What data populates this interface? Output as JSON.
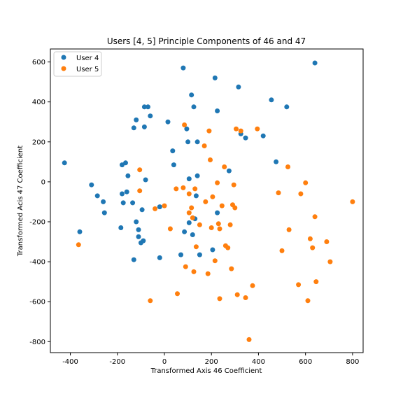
{
  "chart_data": {
    "type": "scatter",
    "title": "Users [4, 5] Principle Components of 46 and 47",
    "xlabel": "Transformed Axis 46 Coefficient",
    "ylabel": "Transformed Acis 47 Coefficient",
    "xlim": [
      -485,
      845
    ],
    "ylim": [
      -855,
      665
    ],
    "xticks": [
      -400,
      -200,
      0,
      200,
      400,
      600,
      800
    ],
    "yticks": [
      -800,
      -600,
      -400,
      -200,
      0,
      200,
      400,
      600
    ],
    "grid": false,
    "legend_position": "top-left",
    "series": [
      {
        "name": "User 4",
        "color": "#1f77b4",
        "points": [
          [
            -425,
            95
          ],
          [
            -360,
            -250
          ],
          [
            -310,
            -15
          ],
          [
            -285,
            -70
          ],
          [
            -260,
            -100
          ],
          [
            -255,
            -155
          ],
          [
            -185,
            -230
          ],
          [
            -180,
            85
          ],
          [
            -180,
            -60
          ],
          [
            -175,
            -105
          ],
          [
            -165,
            95
          ],
          [
            -160,
            -50
          ],
          [
            -155,
            30
          ],
          [
            -135,
            -105
          ],
          [
            -130,
            270
          ],
          [
            -130,
            -390
          ],
          [
            -120,
            310
          ],
          [
            -120,
            -200
          ],
          [
            -110,
            -240
          ],
          [
            -110,
            -275
          ],
          [
            -100,
            -305
          ],
          [
            -95,
            -140
          ],
          [
            -90,
            -295
          ],
          [
            -85,
            375
          ],
          [
            -85,
            275
          ],
          [
            -80,
            10
          ],
          [
            -70,
            375
          ],
          [
            -60,
            330
          ],
          [
            -20,
            -380
          ],
          [
            -20,
            -125
          ],
          [
            15,
            300
          ],
          [
            35,
            155
          ],
          [
            40,
            85
          ],
          [
            70,
            -365
          ],
          [
            80,
            570
          ],
          [
            85,
            -250
          ],
          [
            95,
            265
          ],
          [
            100,
            200
          ],
          [
            105,
            -205
          ],
          [
            105,
            15
          ],
          [
            115,
            435
          ],
          [
            120,
            -265
          ],
          [
            125,
            375
          ],
          [
            130,
            -185
          ],
          [
            135,
            -70
          ],
          [
            140,
            30
          ],
          [
            140,
            200
          ],
          [
            150,
            -365
          ],
          [
            205,
            -340
          ],
          [
            215,
            520
          ],
          [
            225,
            355
          ],
          [
            225,
            -155
          ],
          [
            275,
            55
          ],
          [
            315,
            475
          ],
          [
            325,
            240
          ],
          [
            345,
            220
          ],
          [
            420,
            230
          ],
          [
            455,
            410
          ],
          [
            475,
            100
          ],
          [
            520,
            375
          ],
          [
            640,
            595
          ]
        ]
      },
      {
        "name": "User 5",
        "color": "#ff7f0e",
        "points": [
          [
            -365,
            -315
          ],
          [
            -105,
            60
          ],
          [
            -105,
            -45
          ],
          [
            -60,
            -595
          ],
          [
            -40,
            -135
          ],
          [
            0,
            -120
          ],
          [
            25,
            -235
          ],
          [
            50,
            -35
          ],
          [
            55,
            -560
          ],
          [
            80,
            -30
          ],
          [
            85,
            285
          ],
          [
            90,
            -425
          ],
          [
            105,
            -60
          ],
          [
            105,
            -155
          ],
          [
            115,
            -130
          ],
          [
            120,
            -180
          ],
          [
            125,
            -450
          ],
          [
            130,
            -35
          ],
          [
            135,
            -325
          ],
          [
            150,
            -215
          ],
          [
            170,
            180
          ],
          [
            175,
            -100
          ],
          [
            185,
            -460
          ],
          [
            190,
            255
          ],
          [
            195,
            110
          ],
          [
            200,
            -230
          ],
          [
            205,
            -75
          ],
          [
            215,
            -395
          ],
          [
            225,
            -5
          ],
          [
            230,
            -210
          ],
          [
            235,
            -235
          ],
          [
            235,
            -585
          ],
          [
            245,
            -120
          ],
          [
            255,
            75
          ],
          [
            260,
            -320
          ],
          [
            270,
            -330
          ],
          [
            280,
            -215
          ],
          [
            285,
            -435
          ],
          [
            290,
            -115
          ],
          [
            295,
            -15
          ],
          [
            300,
            -130
          ],
          [
            305,
            265
          ],
          [
            310,
            -565
          ],
          [
            325,
            255
          ],
          [
            345,
            -580
          ],
          [
            360,
            -790
          ],
          [
            375,
            -520
          ],
          [
            395,
            265
          ],
          [
            485,
            -55
          ],
          [
            500,
            -345
          ],
          [
            525,
            75
          ],
          [
            530,
            -240
          ],
          [
            570,
            -515
          ],
          [
            580,
            -60
          ],
          [
            600,
            -5
          ],
          [
            610,
            -595
          ],
          [
            620,
            -285
          ],
          [
            630,
            -330
          ],
          [
            640,
            -175
          ],
          [
            645,
            -500
          ],
          [
            690,
            -300
          ],
          [
            705,
            -400
          ],
          [
            800,
            -100
          ]
        ]
      }
    ]
  }
}
